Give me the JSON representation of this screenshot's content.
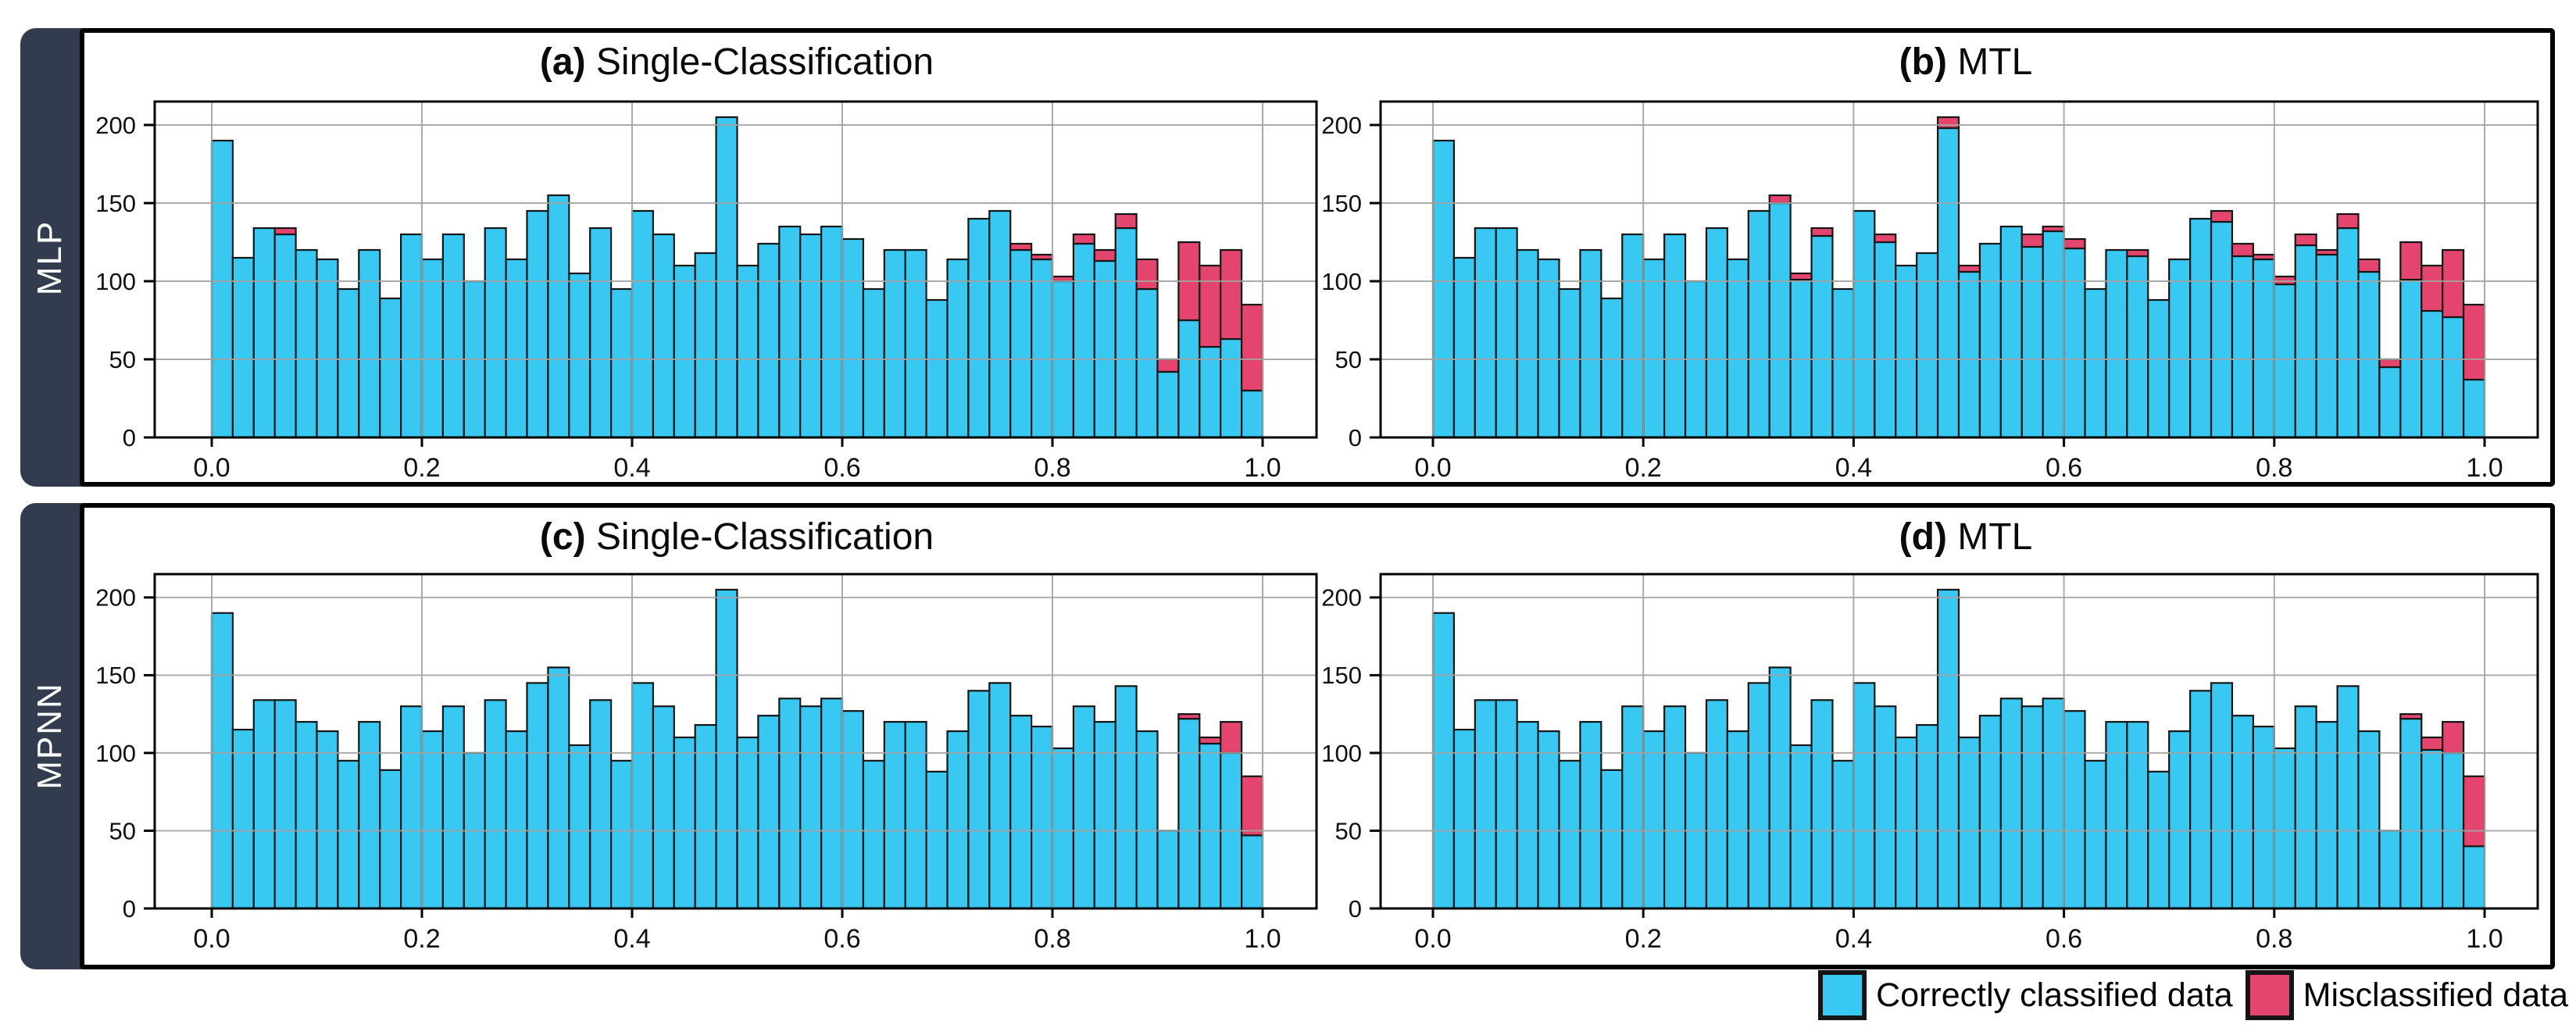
{
  "figure": {
    "rows": [
      {
        "label": "MLP"
      },
      {
        "label": "MPNN"
      }
    ],
    "panels": [
      {
        "id": "a",
        "index_label": "(a)",
        "title": "Single-Classification"
      },
      {
        "id": "b",
        "index_label": "(b)",
        "title": "MTL"
      },
      {
        "id": "c",
        "index_label": "(c)",
        "title": "Single-Classification"
      },
      {
        "id": "d",
        "index_label": "(d)",
        "title": "MTL"
      }
    ]
  },
  "legend": {
    "items": [
      {
        "label": "Correctly classified data",
        "color": "#38C8F2"
      },
      {
        "label": "Misclassified data",
        "color": "#E4456E"
      }
    ]
  },
  "colors": {
    "correct": "#38C8F2",
    "misclassified": "#E4456E",
    "bar_edge": "#161616",
    "grid": "#a3a3a3",
    "frame": "#000000",
    "sidebar": "#333B4E"
  },
  "chart_data": [
    {
      "type": "bar",
      "subtype": "stacked-histogram",
      "panel": "a",
      "row": "MLP",
      "title": "(a) Single-Classification",
      "bins": 50,
      "x_range": [
        0.0,
        1.0
      ],
      "x_tick_labels": [
        "0.0",
        "0.2",
        "0.4",
        "0.6",
        "0.8",
        "1.0"
      ],
      "y_ticks": [
        0,
        50,
        100,
        150,
        200
      ],
      "ylim": [
        0,
        215
      ],
      "series": [
        {
          "name": "Correctly classified data",
          "values": [
            190,
            115,
            134,
            130,
            120,
            114,
            95,
            120,
            89,
            130,
            114,
            130,
            100,
            134,
            114,
            145,
            155,
            105,
            134,
            95,
            145,
            130,
            110,
            118,
            205,
            110,
            124,
            135,
            130,
            135,
            127,
            95,
            120,
            120,
            88,
            114,
            140,
            145,
            120,
            114,
            100,
            124,
            113,
            134,
            95,
            42,
            75,
            58,
            63,
            30
          ]
        },
        {
          "name": "Misclassified data",
          "values": [
            0,
            0,
            0,
            4,
            0,
            0,
            0,
            0,
            0,
            0,
            0,
            0,
            0,
            0,
            0,
            0,
            0,
            0,
            0,
            0,
            0,
            0,
            0,
            0,
            0,
            0,
            0,
            0,
            0,
            0,
            0,
            0,
            0,
            0,
            0,
            0,
            0,
            0,
            4,
            3,
            3,
            6,
            7,
            9,
            19,
            8,
            50,
            52,
            57,
            55
          ]
        }
      ]
    },
    {
      "type": "bar",
      "subtype": "stacked-histogram",
      "panel": "b",
      "row": "MLP",
      "title": "(b) MTL",
      "bins": 50,
      "x_range": [
        0.0,
        1.0
      ],
      "x_tick_labels": [
        "0.0",
        "0.2",
        "0.4",
        "0.6",
        "0.8",
        "1.0"
      ],
      "y_ticks": [
        0,
        50,
        100,
        150,
        200
      ],
      "ylim": [
        0,
        215
      ],
      "series": [
        {
          "name": "Correctly classified data",
          "values": [
            190,
            115,
            134,
            134,
            120,
            114,
            95,
            120,
            89,
            130,
            114,
            130,
            100,
            134,
            114,
            145,
            150,
            101,
            129,
            95,
            145,
            125,
            110,
            118,
            198,
            106,
            124,
            135,
            122,
            132,
            121,
            95,
            120,
            116,
            88,
            114,
            140,
            138,
            116,
            114,
            98,
            123,
            117,
            134,
            106,
            45,
            101,
            81,
            77,
            37
          ]
        },
        {
          "name": "Misclassified data",
          "values": [
            0,
            0,
            0,
            0,
            0,
            0,
            0,
            0,
            0,
            0,
            0,
            0,
            0,
            0,
            0,
            0,
            5,
            4,
            5,
            0,
            0,
            5,
            0,
            0,
            7,
            4,
            0,
            0,
            8,
            3,
            6,
            0,
            0,
            4,
            0,
            0,
            0,
            7,
            8,
            3,
            5,
            7,
            3,
            9,
            8,
            5,
            24,
            29,
            43,
            48
          ]
        }
      ]
    },
    {
      "type": "bar",
      "subtype": "stacked-histogram",
      "panel": "c",
      "row": "MPNN",
      "title": "(c) Single-Classification",
      "bins": 50,
      "x_range": [
        0.0,
        1.0
      ],
      "x_tick_labels": [
        "0.0",
        "0.2",
        "0.4",
        "0.6",
        "0.8",
        "1.0"
      ],
      "y_ticks": [
        0,
        50,
        100,
        150,
        200
      ],
      "ylim": [
        0,
        215
      ],
      "series": [
        {
          "name": "Correctly classified data",
          "values": [
            190,
            115,
            134,
            134,
            120,
            114,
            95,
            120,
            89,
            130,
            114,
            130,
            100,
            134,
            114,
            145,
            155,
            105,
            134,
            95,
            145,
            130,
            110,
            118,
            205,
            110,
            124,
            135,
            130,
            135,
            127,
            95,
            120,
            120,
            88,
            114,
            140,
            145,
            124,
            117,
            103,
            130,
            120,
            143,
            114,
            50,
            122,
            106,
            100,
            47
          ]
        },
        {
          "name": "Misclassified data",
          "values": [
            0,
            0,
            0,
            0,
            0,
            0,
            0,
            0,
            0,
            0,
            0,
            0,
            0,
            0,
            0,
            0,
            0,
            0,
            0,
            0,
            0,
            0,
            0,
            0,
            0,
            0,
            0,
            0,
            0,
            0,
            0,
            0,
            0,
            0,
            0,
            0,
            0,
            0,
            0,
            0,
            0,
            0,
            0,
            0,
            0,
            0,
            3,
            4,
            20,
            38
          ]
        }
      ]
    },
    {
      "type": "bar",
      "subtype": "stacked-histogram",
      "panel": "d",
      "row": "MPNN",
      "title": "(d) MTL",
      "bins": 50,
      "x_range": [
        0.0,
        1.0
      ],
      "x_tick_labels": [
        "0.0",
        "0.2",
        "0.4",
        "0.6",
        "0.8",
        "1.0"
      ],
      "y_ticks": [
        0,
        50,
        100,
        150,
        200
      ],
      "ylim": [
        0,
        215
      ],
      "series": [
        {
          "name": "Correctly classified data",
          "values": [
            190,
            115,
            134,
            134,
            120,
            114,
            95,
            120,
            89,
            130,
            114,
            130,
            100,
            134,
            114,
            145,
            155,
            105,
            134,
            95,
            145,
            130,
            110,
            118,
            205,
            110,
            124,
            135,
            130,
            135,
            127,
            95,
            120,
            120,
            88,
            114,
            140,
            145,
            124,
            117,
            103,
            130,
            120,
            143,
            114,
            50,
            122,
            102,
            100,
            40
          ]
        },
        {
          "name": "Misclassified data",
          "values": [
            0,
            0,
            0,
            0,
            0,
            0,
            0,
            0,
            0,
            0,
            0,
            0,
            0,
            0,
            0,
            0,
            0,
            0,
            0,
            0,
            0,
            0,
            0,
            0,
            0,
            0,
            0,
            0,
            0,
            0,
            0,
            0,
            0,
            0,
            0,
            0,
            0,
            0,
            0,
            0,
            0,
            0,
            0,
            0,
            0,
            0,
            3,
            8,
            20,
            45
          ]
        }
      ]
    }
  ]
}
